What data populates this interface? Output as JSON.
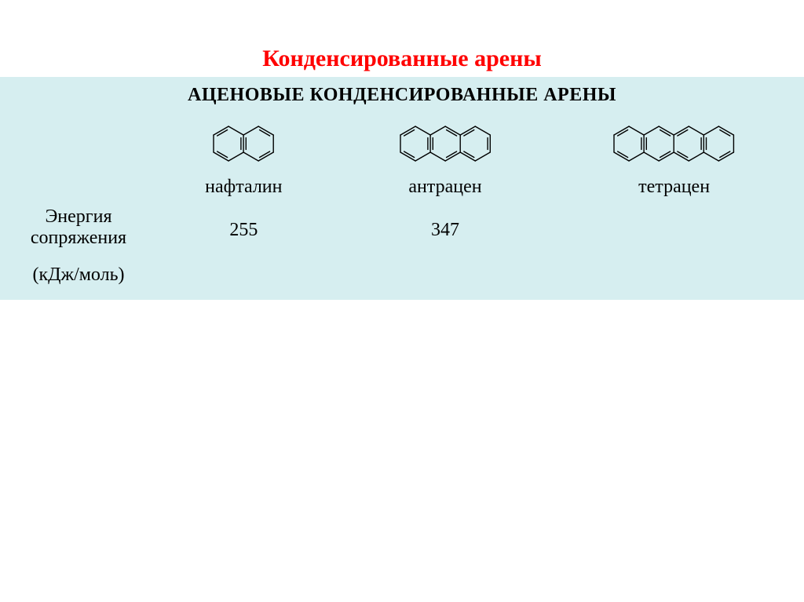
{
  "title": {
    "text": "Конденсированные арены",
    "color": "#ff0000",
    "fontsize": 30
  },
  "subtitle": {
    "text": "АЦЕНОВЫЕ  КОНДЕНСИРОВАННЫЕ  АРЕНЫ",
    "color": "#000000",
    "fontsize": 24
  },
  "panel": {
    "background": "#d6eef0"
  },
  "label_fontsize": 24,
  "value_fontsize": 24,
  "left_label": {
    "line1": "Энергия",
    "line2": "сопряжения",
    "line3": "(кДж/моль)"
  },
  "structure_stroke": "#000000",
  "structure_stroke_width": 1.4,
  "molecules": [
    {
      "name": "нафталин",
      "value": "255",
      "rings": 2
    },
    {
      "name": "антрацен",
      "value": "347",
      "rings": 3
    },
    {
      "name": "тетрацен",
      "value": "",
      "rings": 4
    }
  ],
  "hex": {
    "r": 22,
    "gap_ratio": 1.5
  }
}
